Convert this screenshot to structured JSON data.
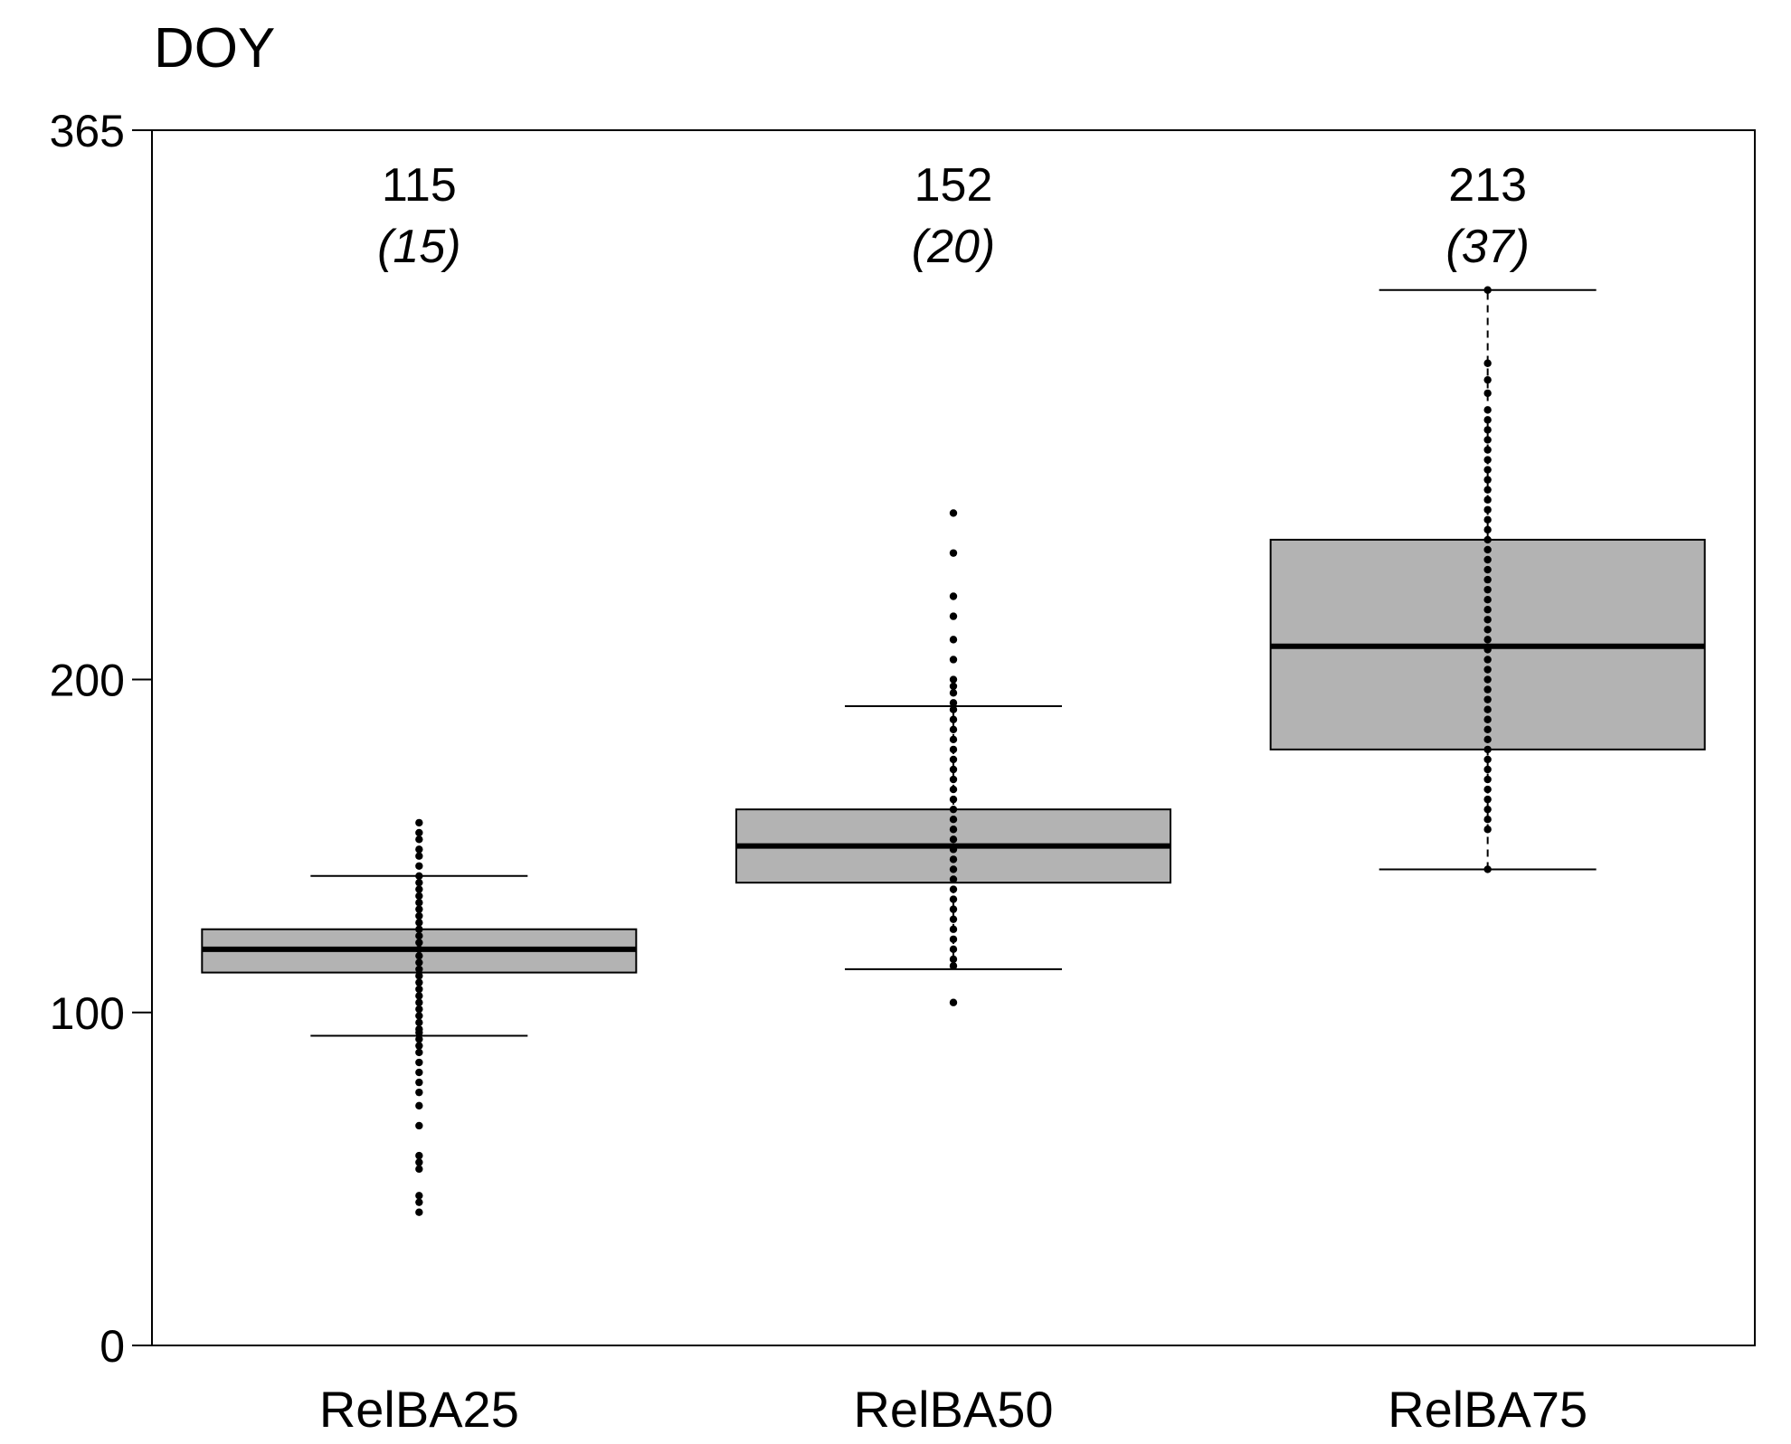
{
  "chart_data": {
    "type": "box",
    "title": "",
    "ylabel": "DOY",
    "xlabel": "",
    "ylim": [
      0,
      365
    ],
    "yticks": [
      0,
      100,
      200,
      365
    ],
    "grid": false,
    "categories": [
      "RelBA25",
      "RelBA50",
      "RelBA75"
    ],
    "annotations": [
      {
        "category": "RelBA25",
        "value": "115",
        "paren": "(15)"
      },
      {
        "category": "RelBA50",
        "value": "152",
        "paren": "(20)"
      },
      {
        "category": "RelBA75",
        "value": "213",
        "paren": "(37)"
      }
    ],
    "boxes": [
      {
        "name": "RelBA25",
        "whisker_low": 93,
        "q1": 112,
        "median": 119,
        "q3": 125,
        "whisker_high": 141,
        "points": [
          40,
          43,
          45,
          53,
          55,
          57,
          66,
          72,
          76,
          79,
          82,
          85,
          88,
          90,
          92,
          94,
          95,
          97,
          99,
          101,
          103,
          105,
          107,
          109,
          111,
          113,
          115,
          117,
          119,
          121,
          123,
          125,
          127,
          129,
          131,
          133,
          135,
          137,
          139,
          141,
          144,
          147,
          149,
          152,
          154,
          157
        ]
      },
      {
        "name": "RelBA50",
        "whisker_low": 113,
        "q1": 139,
        "median": 150,
        "q3": 161,
        "whisker_high": 192,
        "points": [
          103,
          114,
          116,
          119,
          122,
          125,
          128,
          131,
          134,
          137,
          140,
          143,
          146,
          149,
          152,
          155,
          158,
          161,
          164,
          167,
          170,
          173,
          176,
          179,
          182,
          185,
          188,
          191,
          193,
          196,
          198,
          200,
          206,
          212,
          219,
          225,
          238,
          250
        ]
      },
      {
        "name": "RelBA75",
        "whisker_low": 143,
        "q1": 179,
        "median": 210,
        "q3": 242,
        "whisker_high": 317,
        "points": [
          143,
          155,
          158,
          161,
          164,
          167,
          170,
          173,
          176,
          179,
          182,
          185,
          188,
          191,
          194,
          197,
          200,
          203,
          206,
          209,
          212,
          215,
          218,
          221,
          224,
          227,
          230,
          233,
          236,
          239,
          242,
          245,
          248,
          251,
          254,
          257,
          260,
          263,
          266,
          269,
          272,
          275,
          278,
          281,
          286,
          290,
          295,
          317
        ]
      }
    ]
  },
  "colors": {
    "box_fill": "#b3b3b3",
    "stroke": "#000000",
    "background": "#ffffff"
  }
}
